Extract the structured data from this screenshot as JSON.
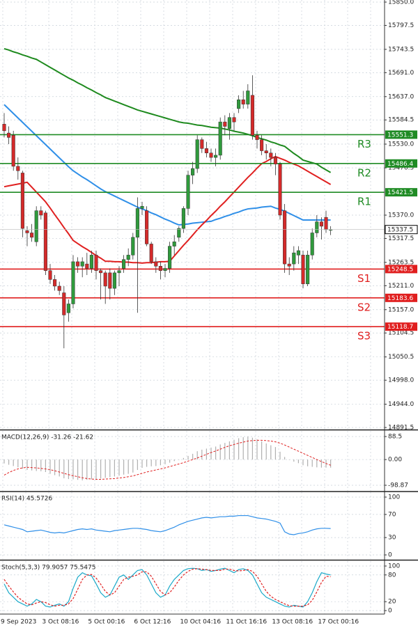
{
  "chart_data": [
    {
      "type": "candlestick",
      "categories": [
        "9 Sep 2023",
        null,
        null,
        null,
        null,
        null,
        null,
        null,
        null,
        "3 Oct 08:16",
        null,
        null,
        null,
        null,
        null,
        null,
        null,
        null,
        null,
        "5 Oct 00:16",
        null,
        null,
        null,
        null,
        null,
        null,
        null,
        null,
        null,
        "6 Oct 12:16",
        null,
        null,
        null,
        null,
        null,
        null,
        null,
        null,
        null,
        "10 Oct 04:16",
        null,
        null,
        null,
        null,
        null,
        null,
        null,
        null,
        null,
        "11 Oct 16:16",
        null,
        null,
        null,
        null,
        null,
        null,
        null,
        null,
        null,
        "13 Oct 08:16",
        null,
        null,
        null,
        null,
        null,
        null,
        null,
        null,
        null,
        "17 Oct 00:16",
        null,
        null
      ],
      "open": [
        15575,
        15555,
        15550,
        15480,
        15465,
        15335,
        15330,
        15310,
        15380,
        15375,
        15245,
        15225,
        15210,
        15195,
        15150,
        15170,
        15265,
        15255,
        15260,
        15250,
        15280,
        15245,
        15240,
        15240,
        15205,
        15240,
        15250,
        15270,
        15280,
        15320,
        15385,
        15380,
        15305,
        15265,
        15255,
        15245,
        15250,
        15300,
        15320,
        15340,
        15385,
        15460,
        15475,
        15540,
        15520,
        15510,
        15500,
        15505,
        15580,
        15565,
        15590,
        15610,
        15630,
        15620,
        15640,
        15550,
        15540,
        15515,
        15510,
        15500,
        15485,
        15380,
        15260,
        15260,
        15280,
        15280,
        15215,
        15280,
        15330,
        15355,
        15365,
        15337
      ],
      "high": [
        15600,
        15570,
        15560,
        15500,
        15470,
        15345,
        15350,
        15390,
        15390,
        15380,
        15260,
        15235,
        15220,
        15210,
        15180,
        15280,
        15275,
        15275,
        15285,
        15290,
        15290,
        15250,
        15245,
        15250,
        15245,
        15255,
        15280,
        15295,
        15330,
        15410,
        15400,
        15390,
        15310,
        15275,
        15265,
        15260,
        15310,
        15325,
        15345,
        15390,
        15470,
        15490,
        15550,
        15545,
        15535,
        15520,
        15520,
        15590,
        15595,
        15600,
        15600,
        15640,
        15650,
        15665,
        15685,
        15560,
        15550,
        15530,
        15520,
        15510,
        15490,
        15395,
        15275,
        15300,
        15300,
        15290,
        15290,
        15340,
        15370,
        15365,
        15380,
        15345
      ],
      "low": [
        15545,
        15530,
        15470,
        15450,
        15320,
        15300,
        15310,
        15300,
        15360,
        15235,
        15215,
        15200,
        15190,
        15070,
        15130,
        15160,
        15240,
        15230,
        15235,
        15240,
        15225,
        15180,
        15170,
        15180,
        15190,
        15210,
        15240,
        15255,
        15270,
        15150,
        15370,
        15300,
        15260,
        15240,
        15225,
        15230,
        15240,
        15280,
        15310,
        15330,
        15370,
        15440,
        15465,
        15510,
        15500,
        15490,
        15480,
        15495,
        15550,
        15540,
        15560,
        15600,
        15610,
        15610,
        15540,
        15520,
        15505,
        15495,
        15480,
        15460,
        15360,
        15240,
        15235,
        15245,
        15260,
        15205,
        15210,
        15270,
        15320,
        15315,
        15330,
        15325
      ],
      "close": [
        15560,
        15545,
        15480,
        15470,
        15340,
        15330,
        15320,
        15380,
        15370,
        15245,
        15225,
        15210,
        15200,
        15145,
        15170,
        15265,
        15255,
        15265,
        15250,
        15280,
        15245,
        15240,
        15210,
        15205,
        15240,
        15245,
        15270,
        15280,
        15320,
        15385,
        15390,
        15305,
        15265,
        15255,
        15245,
        15250,
        15300,
        15310,
        15340,
        15385,
        15460,
        15475,
        15540,
        15520,
        15510,
        15500,
        15505,
        15580,
        15570,
        15590,
        15580,
        15630,
        15620,
        15650,
        15550,
        15540,
        15515,
        15510,
        15500,
        15485,
        15370,
        15260,
        15255,
        15285,
        15290,
        15215,
        15280,
        15330,
        15355,
        15345,
        15338,
        15337.5
      ],
      "up_color": "#2f9a3c",
      "down_color": "#d42a2a",
      "series": [
        {
          "color": "#1e8a1e",
          "values": [
            15745,
            15742,
            15738,
            15735,
            15731,
            15728,
            15724,
            15721,
            15715,
            15709,
            15703,
            15697,
            15691,
            15685,
            15679,
            15674,
            15668,
            15663,
            15657,
            15652,
            15646,
            15641,
            15635,
            15631,
            15627,
            15623,
            15619,
            15615,
            15611,
            15607,
            15604,
            15601,
            15598,
            15595,
            15592,
            15589,
            15586,
            15583,
            15580,
            15578,
            15577,
            15575,
            15573,
            15572,
            15570,
            15568,
            15567,
            15566,
            15564,
            15562,
            15559,
            15557,
            15555,
            15552,
            15549,
            15545,
            15542,
            15539,
            15535,
            15532,
            15528,
            15525,
            15517,
            15509,
            15502,
            15494,
            15491,
            15488,
            15485,
            15478,
            15472,
            15466
          ]
        },
        {
          "color": "#2f8fe8",
          "values": [
            15619,
            15609,
            15599,
            15589,
            15579,
            15569,
            15559,
            15549,
            15539,
            15529,
            15519,
            15509,
            15499,
            15489,
            15479,
            15470,
            15463,
            15456,
            15450,
            15443,
            15436,
            15429,
            15423,
            15418,
            15413,
            15408,
            15403,
            15398,
            15393,
            15388,
            15384,
            15380,
            15375,
            15371,
            15366,
            15361,
            15357,
            15352,
            15348,
            15349,
            15350,
            15352,
            15353,
            15354,
            15355,
            15356,
            15360,
            15363,
            15367,
            15370,
            15374,
            15377,
            15381,
            15384,
            15385,
            15386,
            15388,
            15389,
            15390,
            15386,
            15383,
            15379,
            15374,
            15369,
            15364,
            15359,
            15359,
            15359,
            15359,
            15359,
            15359,
            15359
          ]
        },
        {
          "color": "#e02020",
          "values": [
            15434,
            15436,
            15438,
            15440,
            15442,
            15444,
            15433,
            15422,
            15411,
            15400,
            15386,
            15371,
            15357,
            15342,
            15328,
            15313,
            15306,
            15299,
            15293,
            15286,
            15279,
            15273,
            15266,
            15266,
            15265,
            15265,
            15264,
            15264,
            15263,
            15263,
            15262,
            15263,
            15263,
            15264,
            15265,
            15265,
            15266,
            15278,
            15290,
            15302,
            15313,
            15325,
            15337,
            15348,
            15358,
            15369,
            15379,
            15390,
            15400,
            15411,
            15422,
            15433,
            15444,
            15455,
            15465,
            15476,
            15486,
            15491,
            15497,
            15502,
            15498,
            15494,
            15489,
            15485,
            15481,
            15475,
            15469,
            15463,
            15457,
            15451,
            15445,
            15439
          ]
        }
      ],
      "levels": [
        {
          "label": "R3",
          "value": 15551.3,
          "color": "#1f8b24"
        },
        {
          "label": "R2",
          "value": 15486.4,
          "color": "#1f8b24"
        },
        {
          "label": "R1",
          "value": 15421.5,
          "color": "#1f8b24"
        },
        {
          "label": "S1",
          "value": 15248.5,
          "color": "#e01e1e"
        },
        {
          "label": "S2",
          "value": 15183.6,
          "color": "#e01e1e"
        },
        {
          "label": "S3",
          "value": 15118.7,
          "color": "#e01e1e"
        }
      ],
      "last_price": 15337.5,
      "ylim": [
        14888.4,
        15854.7
      ],
      "yticks": [
        {
          "value": 15850,
          "label": "15850.0"
        },
        15797.5,
        15743.5,
        {
          "value": 15691,
          "label": "15691.0"
        },
        {
          "value": 15637,
          "label": "15637.0"
        },
        15584.5,
        {
          "value": 15530,
          "label": "15530.0"
        },
        15476.5,
        {
          "value": 15370,
          "label": "15370.0"
        },
        15317.5,
        15263.5,
        {
          "value": 15211,
          "label": "15211.0"
        },
        {
          "value": 15157,
          "label": "15157.0"
        },
        15104.5,
        15050.5,
        {
          "value": 14998,
          "label": "14998.0"
        },
        {
          "value": 14944,
          "label": "14944.0"
        },
        14891.5
      ],
      "grid": true
    },
    {
      "type": "macd",
      "title": "MACD(12,26,9) -31.26 -21.62",
      "histogram": [
        -15,
        -20,
        -25,
        -30,
        -35,
        -40,
        -42,
        -44,
        -45,
        -48,
        -55,
        -60,
        -65,
        -72,
        -75,
        -76,
        -78,
        -80,
        -78,
        -76,
        -75,
        -73,
        -70,
        -68,
        -65,
        -62,
        -58,
        -55,
        -50,
        -40,
        -32,
        -28,
        -26,
        -25,
        -22,
        -18,
        -12,
        -6,
        0,
        6,
        14,
        22,
        32,
        38,
        42,
        46,
        50,
        58,
        64,
        70,
        76,
        82,
        86,
        88,
        84,
        78,
        70,
        62,
        55,
        48,
        30,
        10,
        0,
        -8,
        -14,
        -22,
        -26,
        -28,
        -30,
        -31,
        -31,
        -31
      ],
      "signal": [
        -60,
        -50,
        -42,
        -36,
        -32,
        -30,
        -31,
        -32,
        -34,
        -36,
        -39,
        -43,
        -48,
        -53,
        -58,
        -62,
        -66,
        -70,
        -73,
        -75,
        -76,
        -76,
        -75,
        -74,
        -73,
        -71,
        -69,
        -66,
        -63,
        -58,
        -53,
        -48,
        -44,
        -40,
        -36,
        -32,
        -27,
        -22,
        -17,
        -12,
        -6,
        0,
        6,
        13,
        20,
        27,
        33,
        40,
        47,
        53,
        58,
        63,
        67,
        71,
        73,
        74,
        74,
        73,
        71,
        68,
        63,
        56,
        48,
        40,
        32,
        24,
        16,
        8,
        0,
        -8,
        -15,
        -22
      ],
      "histogram_color": "#b0b0b0",
      "signal_color": "#e02020",
      "ylim": [
        -120.3,
        109.9
      ],
      "yticks": [
        88.5,
        {
          "value": 0,
          "label": "0.00"
        },
        -98.87
      ],
      "grid": true
    },
    {
      "type": "line",
      "title": "RSI(14) 45.5726",
      "series": [
        {
          "color": "#2f8fe8",
          "values": [
            52,
            50,
            48,
            46,
            44,
            40,
            41,
            42,
            43,
            41,
            39,
            38,
            39,
            38,
            40,
            42,
            44,
            45,
            44,
            45,
            43,
            42,
            41,
            40,
            42,
            43,
            44,
            45,
            46,
            46,
            45,
            44,
            42,
            41,
            40,
            42,
            45,
            48,
            52,
            55,
            58,
            60,
            62,
            64,
            65,
            64,
            65,
            66,
            66,
            67,
            67,
            68,
            68,
            68,
            66,
            64,
            63,
            62,
            60,
            58,
            55,
            40,
            36,
            35,
            37,
            38,
            40,
            43,
            45,
            46,
            46,
            45.6
          ]
        }
      ],
      "ylim": [
        -7.2,
        108.4
      ],
      "yticks": [
        100,
        70,
        30,
        0
      ],
      "grid": true
    },
    {
      "type": "line",
      "title": "Stoch(5,3,3) 79.9057 75.5475",
      "series": [
        {
          "color": "#1aa9c9",
          "values": [
            60,
            40,
            30,
            20,
            15,
            10,
            15,
            25,
            20,
            10,
            8,
            12,
            15,
            10,
            20,
            50,
            75,
            85,
            80,
            78,
            60,
            40,
            30,
            35,
            55,
            75,
            80,
            70,
            80,
            90,
            92,
            80,
            60,
            40,
            30,
            35,
            55,
            70,
            80,
            90,
            94,
            95,
            94,
            90,
            92,
            88,
            90,
            93,
            95,
            90,
            85,
            92,
            94,
            90,
            80,
            60,
            40,
            30,
            25,
            20,
            15,
            10,
            8,
            12,
            10,
            8,
            20,
            40,
            65,
            85,
            82,
            80
          ]
        },
        {
          "color": "#e02020",
          "dash": true,
          "values": [
            70,
            55,
            42,
            30,
            22,
            15,
            13,
            17,
            20,
            18,
            13,
            10,
            12,
            12,
            15,
            27,
            48,
            70,
            80,
            81,
            73,
            59,
            43,
            35,
            40,
            55,
            70,
            75,
            77,
            80,
            87,
            87,
            77,
            60,
            43,
            35,
            40,
            53,
            68,
            80,
            88,
            93,
            94,
            93,
            92,
            90,
            90,
            90,
            93,
            93,
            90,
            89,
            90,
            92,
            88,
            77,
            60,
            43,
            32,
            25,
            20,
            15,
            11,
            10,
            10,
            10,
            13,
            23,
            42,
            63,
            77,
            76
          ]
        }
      ],
      "ylim": [
        -7.8,
        110.9
      ],
      "yticks": [
        100,
        80,
        20,
        0
      ],
      "grid": true
    }
  ]
}
